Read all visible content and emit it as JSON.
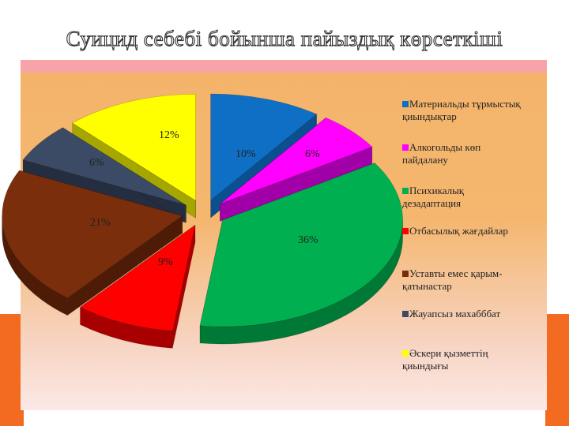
{
  "title": "Суицид себебі бойынша  пайыздық көрсеткіші",
  "chart_data": {
    "type": "pie",
    "title": "Суицид себебі бойынша  пайыздық көрсеткіші",
    "legend_placement": "right",
    "slices": [
      {
        "name": "Материальды тұрмыстық қиындықтар",
        "value": 10,
        "label": "10%",
        "color": "#0E6FC5",
        "side": "#0A4F8F"
      },
      {
        "name": "Алкогольды көп пайдалану",
        "value": 6,
        "label": "6%",
        "color": "#FF00FF",
        "side": "#A100A8"
      },
      {
        "name": "Психикалық дезадаптация",
        "value": 36,
        "label": "36%",
        "color": "#00B050",
        "side": "#007836"
      },
      {
        "name": "Отбасылық жағдайлар",
        "value": 9,
        "label": "9%",
        "color": "#FF0000",
        "side": "#A80000"
      },
      {
        "name": "Уставты емес қарым-қатынастар",
        "value": 21,
        "label": "21%",
        "color": "#7A2E0C",
        "side": "#4E1C06"
      },
      {
        "name": "Жауапсыз махабббат",
        "value": 6,
        "label": "6%",
        "color": "#3B4A65",
        "side": "#242E40"
      },
      {
        "name": "Әскери қызметтің қиындығы",
        "value": 12,
        "label": "12%",
        "color": "#FFFF00",
        "side": "#A6A600"
      }
    ]
  },
  "legend": [
    {
      "line1": "Материальды тұрмыстық",
      "line2": "қиындықтар",
      "color": "#0E6FC5"
    },
    {
      "line1": "Алкогольды көп",
      "line2": "пайдалану",
      "color": "#FF00FF"
    },
    {
      "line1": "Психикалық",
      "line2": "дезадаптация",
      "color": "#00B050"
    },
    {
      "line1": "Отбасылық жағдайлар",
      "line2": "",
      "color": "#FF0000"
    },
    {
      "line1": "Уставты емес қарым-",
      "line2": "қатынастар",
      "color": "#7A2E0C"
    },
    {
      "line1": "Жауапсыз махабббат",
      "line2": "",
      "color": "#3B4A65"
    },
    {
      "line1": "Әскери қызметтің",
      "line2": "қиындығы",
      "color": "#FFFF00"
    }
  ]
}
